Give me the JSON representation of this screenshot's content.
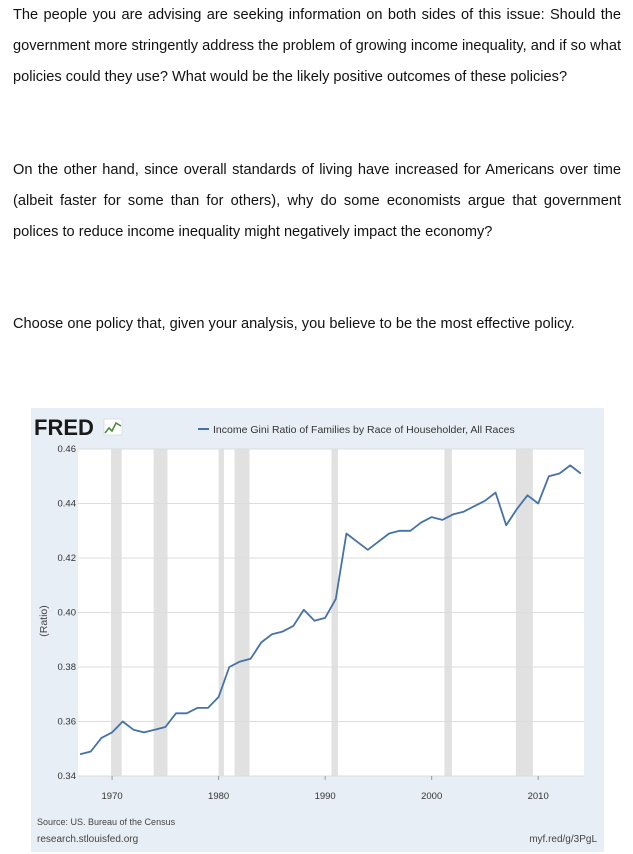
{
  "paragraphs": [
    "The people you are advising are seeking information on both sides of this issue: Should the government more stringently address the problem of growing income inequality, and if so what policies could they use? What would be the likely positive outcomes of these policies?",
    "On the other hand, since overall standards of living have increased for Americans over time (albeit faster for some than for others), why do some economists argue that government polices to reduce income inequality might negatively impact the economy?",
    "Choose one policy that, given your analysis, you believe to be the most effective policy."
  ],
  "fred": {
    "logo": "FRED",
    "source": "Source: US. Bureau of the Census",
    "site": "research.stlouisfed.org",
    "shortlink": "myf.red/g/3PgL"
  },
  "chart_data": {
    "type": "line",
    "title": "",
    "ylabel": "(Ratio)",
    "xlabel": "",
    "ylim": [
      0.34,
      0.46
    ],
    "xlim": [
      1966.8,
      2014.3
    ],
    "y_ticks": [
      "0.34",
      "0.36",
      "0.38",
      "0.40",
      "0.42",
      "0.44",
      "0.46"
    ],
    "x_ticks": [
      "1970",
      "1980",
      "1990",
      "2000",
      "2010"
    ],
    "grid": true,
    "legend": "top",
    "recessions": [
      [
        1969.9,
        1970.9
      ],
      [
        1973.9,
        1975.2
      ],
      [
        1980.0,
        1980.5
      ],
      [
        1981.5,
        1982.9
      ],
      [
        1990.6,
        1991.2
      ],
      [
        2001.2,
        2001.9
      ],
      [
        2007.9,
        2009.5
      ]
    ],
    "series": [
      {
        "name": "Income Gini Ratio of Families by Race of Householder, All Races",
        "color": "#4572a7",
        "x": [
          1967,
          1968,
          1969,
          1970,
          1971,
          1972,
          1973,
          1974,
          1975,
          1976,
          1977,
          1978,
          1979,
          1980,
          1981,
          1982,
          1983,
          1984,
          1985,
          1986,
          1987,
          1988,
          1989,
          1990,
          1991,
          1992,
          1993,
          1994,
          1995,
          1996,
          1997,
          1998,
          1999,
          2000,
          2001,
          2002,
          2003,
          2004,
          2005,
          2006,
          2007,
          2008,
          2009,
          2010,
          2011,
          2012,
          2013,
          2014
        ],
        "values": [
          0.348,
          0.349,
          0.354,
          0.356,
          0.36,
          0.357,
          0.356,
          0.357,
          0.358,
          0.363,
          0.363,
          0.365,
          0.365,
          0.369,
          0.38,
          0.382,
          0.383,
          0.389,
          0.392,
          0.393,
          0.395,
          0.401,
          0.397,
          0.398,
          0.405,
          0.429,
          0.426,
          0.423,
          0.426,
          0.429,
          0.43,
          0.43,
          0.433,
          0.435,
          0.434,
          0.436,
          0.437,
          0.439,
          0.441,
          0.444,
          0.432,
          0.438,
          0.443,
          0.44,
          0.45,
          0.451,
          0.454,
          0.451
        ]
      }
    ]
  }
}
